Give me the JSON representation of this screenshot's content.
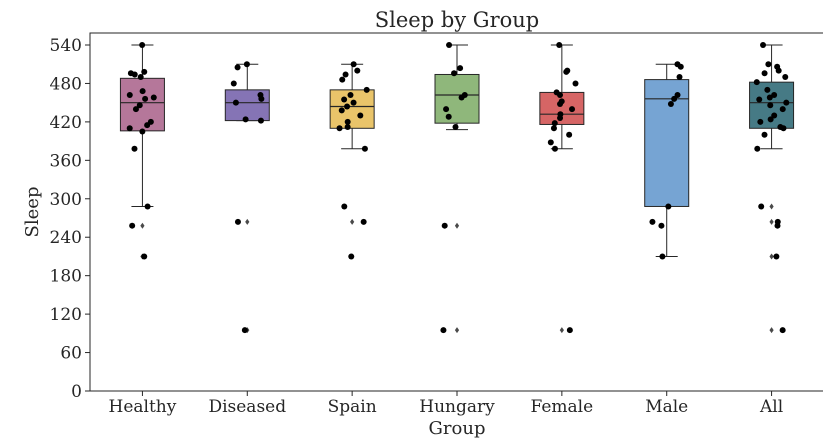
{
  "chart_data": {
    "type": "box",
    "title": "Sleep by Group",
    "xlabel": "Group",
    "ylabel": "Sleep",
    "ylim": [
      0,
      560
    ],
    "yticks": [
      0,
      60,
      120,
      180,
      240,
      300,
      360,
      420,
      480,
      540
    ],
    "grid": false,
    "series": [
      {
        "name": "Healthy",
        "color": "#b5779a",
        "q1": 406,
        "median": 450,
        "q3": 488,
        "whisker_low": 288,
        "whisker_high": 540,
        "outliers": [
          258,
          210
        ],
        "points": [
          540,
          498,
          496,
          494,
          490,
          468,
          462,
          458,
          456,
          446,
          440,
          420,
          415,
          410,
          405,
          378,
          288,
          258,
          210
        ]
      },
      {
        "name": "Diseased",
        "color": "#8574b5",
        "q1": 422,
        "median": 450,
        "q3": 470,
        "whisker_low": 422,
        "whisker_high": 510,
        "outliers": [
          264,
          95
        ],
        "points": [
          510,
          505,
          480,
          462,
          456,
          450,
          424,
          422,
          264,
          95
        ]
      },
      {
        "name": "Spain",
        "color": "#e9c46a",
        "q1": 410,
        "median": 444,
        "q3": 470,
        "whisker_low": 378,
        "whisker_high": 510,
        "outliers": [
          264,
          210
        ],
        "points": [
          510,
          500,
          494,
          486,
          470,
          462,
          455,
          450,
          444,
          438,
          430,
          420,
          412,
          410,
          378,
          288,
          264,
          210
        ]
      },
      {
        "name": "Hungary",
        "color": "#8fb77b",
        "q1": 418,
        "median": 462,
        "q3": 494,
        "whisker_low": 408,
        "whisker_high": 540,
        "outliers": [
          258,
          95
        ],
        "points": [
          540,
          504,
          496,
          462,
          458,
          440,
          428,
          412,
          258,
          95
        ]
      },
      {
        "name": "Female",
        "color": "#d66565",
        "q1": 416,
        "median": 432,
        "q3": 466,
        "whisker_low": 378,
        "whisker_high": 540,
        "outliers": [
          95
        ],
        "points": [
          540,
          500,
          498,
          480,
          466,
          462,
          452,
          448,
          440,
          432,
          426,
          418,
          410,
          400,
          388,
          378,
          95
        ]
      },
      {
        "name": "Male",
        "color": "#76a4d3",
        "q1": 288,
        "median": 456,
        "q3": 486,
        "whisker_low": 210,
        "whisker_high": 510,
        "outliers": [],
        "points": [
          510,
          506,
          490,
          462,
          456,
          448,
          288,
          264,
          258,
          210
        ]
      },
      {
        "name": "All",
        "color": "#467a85",
        "q1": 410,
        "median": 450,
        "q3": 482,
        "whisker_low": 378,
        "whisker_high": 540,
        "outliers": [
          288,
          264,
          210,
          95
        ],
        "points": [
          540,
          510,
          506,
          500,
          496,
          490,
          482,
          470,
          462,
          458,
          455,
          450,
          446,
          440,
          430,
          424,
          420,
          412,
          410,
          400,
          378,
          288,
          264,
          258,
          210,
          95
        ]
      }
    ]
  }
}
